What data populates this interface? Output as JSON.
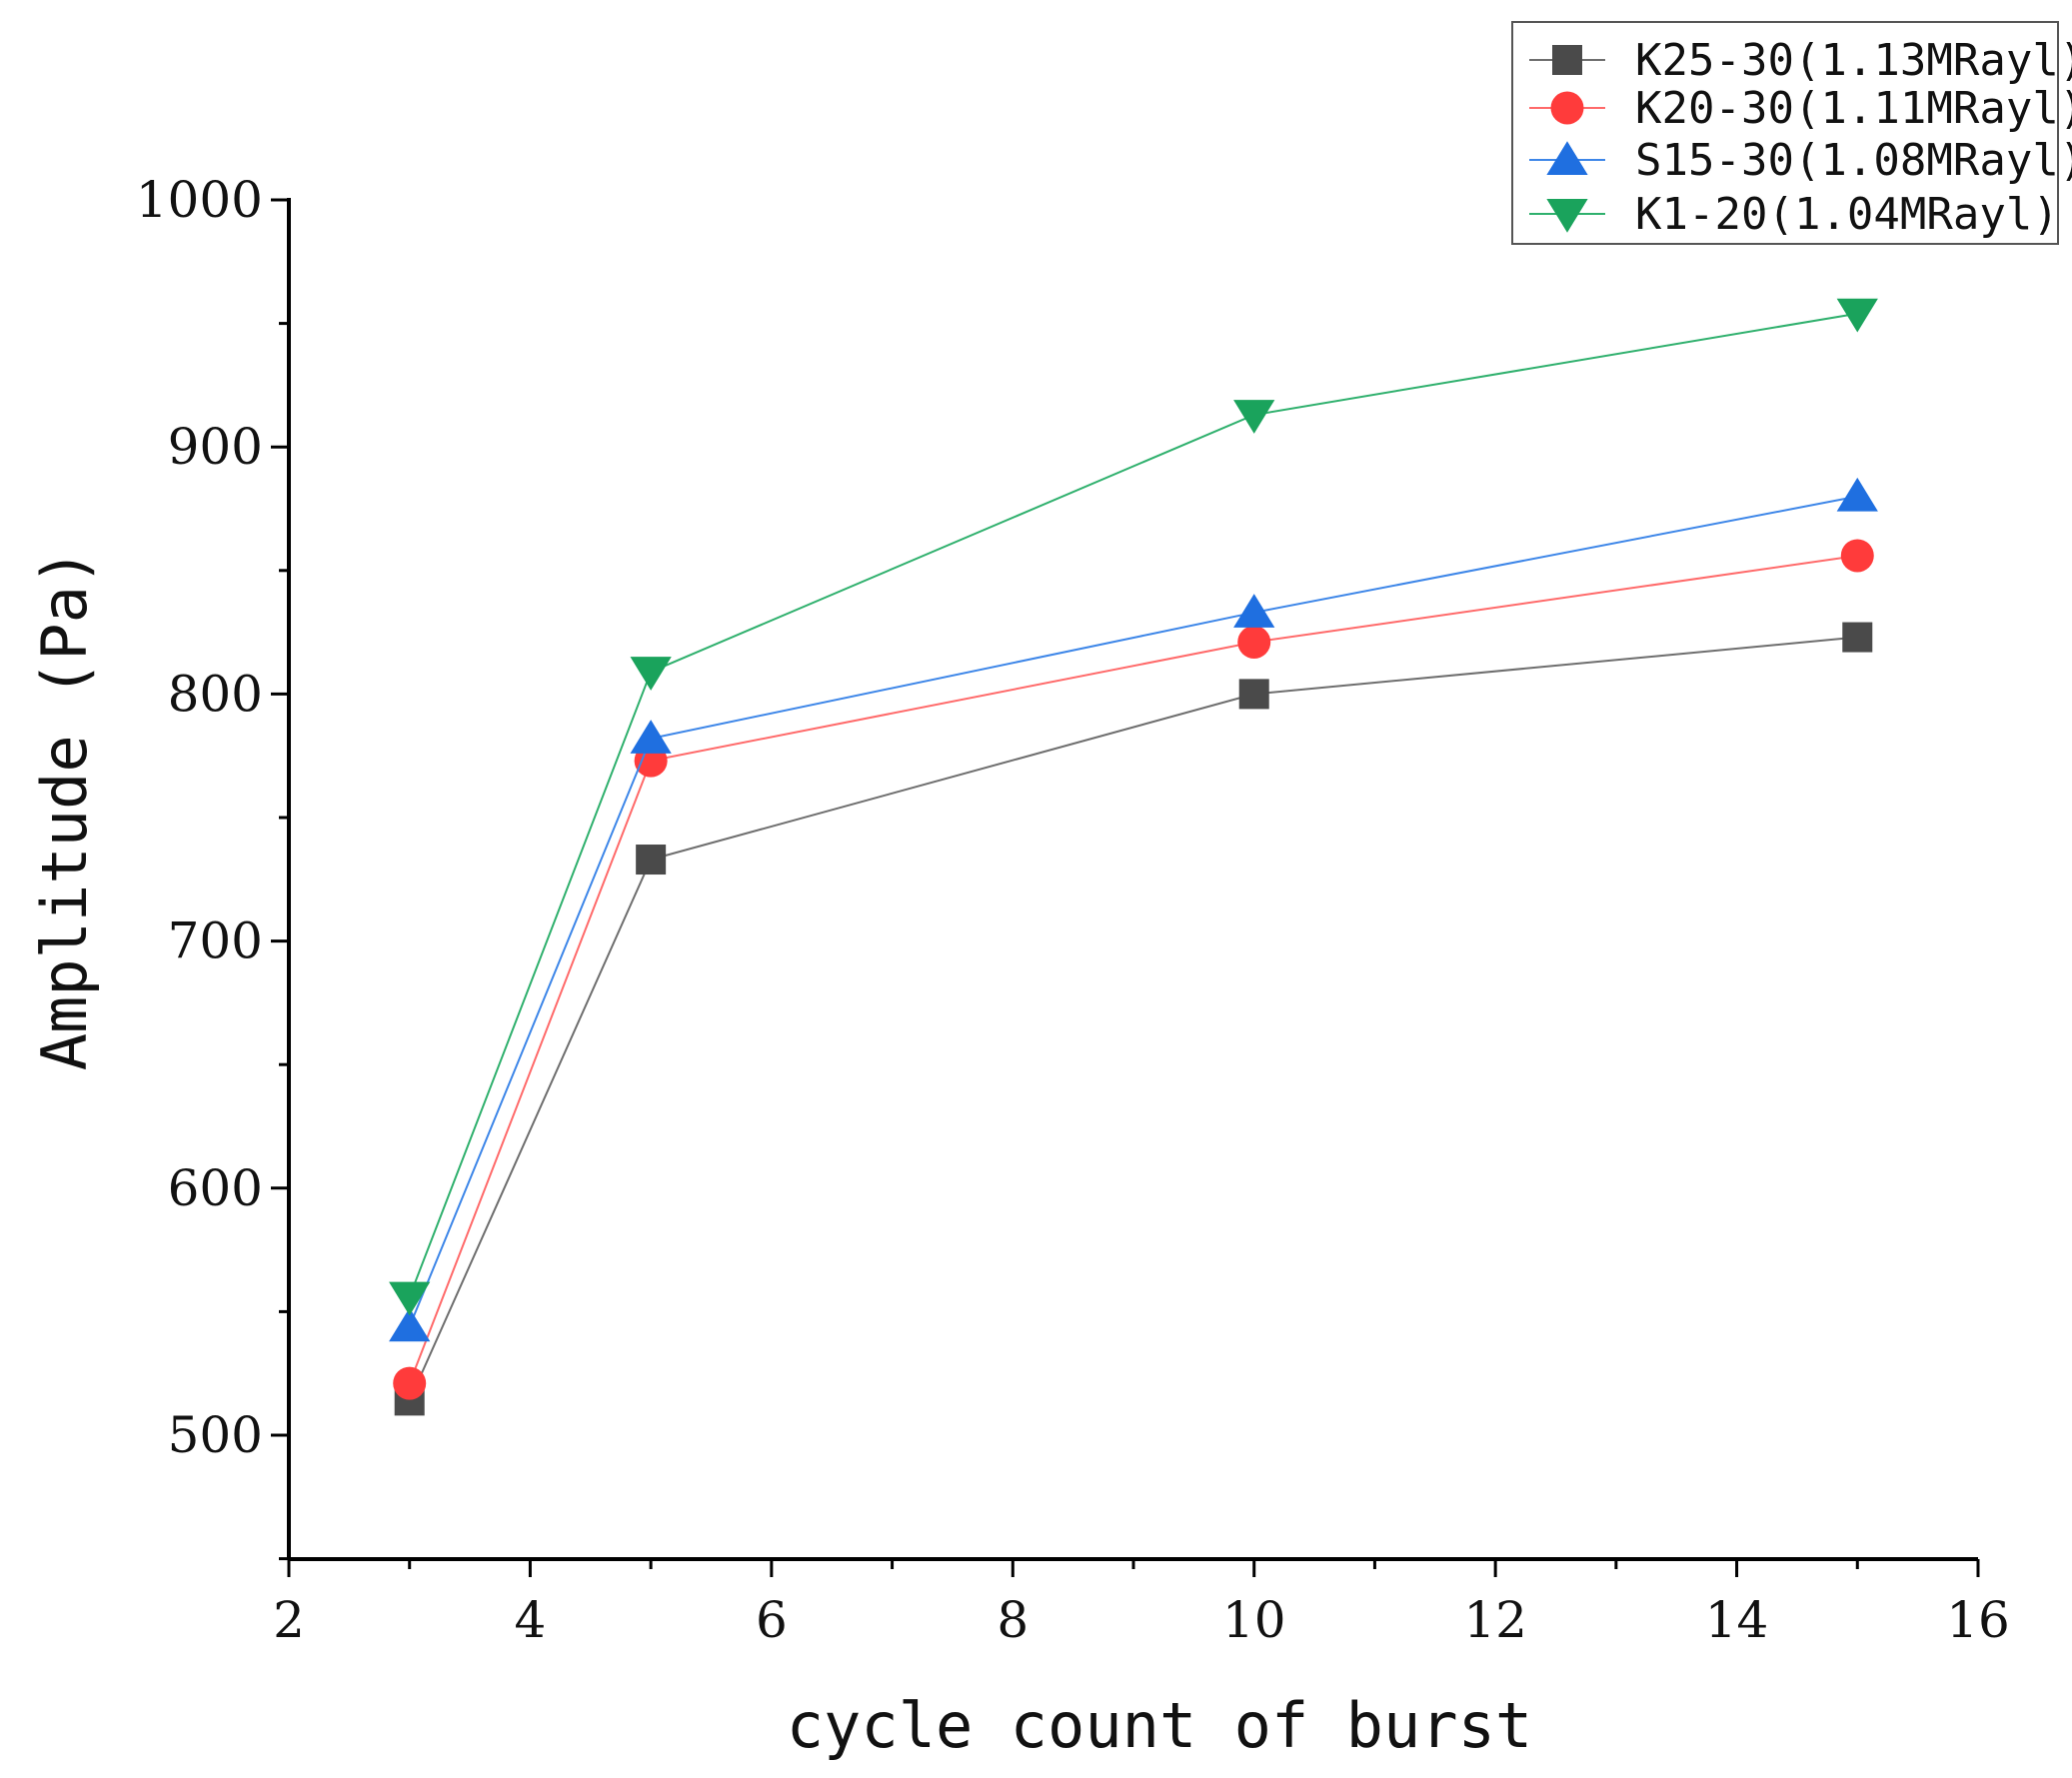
{
  "chart_data": {
    "type": "line",
    "title": "",
    "xlabel": "cycle count of burst",
    "ylabel": "Amplitude (Pa)",
    "xlim": [
      2,
      16
    ],
    "ylim": [
      450,
      1000
    ],
    "x_major_ticks": [
      2,
      4,
      6,
      8,
      10,
      12,
      14,
      16
    ],
    "x_tick_labels": [
      "2",
      "4",
      "6",
      "8",
      "10",
      "12",
      "14",
      "16"
    ],
    "y_major_ticks": [
      500,
      600,
      700,
      800,
      900,
      1000
    ],
    "y_tick_labels": [
      "500",
      "600",
      "700",
      "800",
      "900",
      "1000"
    ],
    "x": [
      3,
      5,
      10,
      15
    ],
    "legend_position": "top-right",
    "grid": false,
    "series": [
      {
        "name": "K25-30(1.13MRayl)",
        "marker": "square",
        "color": "#4a4a4a",
        "line_color": "#6e6e6e",
        "values": [
          514,
          733,
          800,
          823
        ]
      },
      {
        "name": "K20-30(1.11MRayl)",
        "marker": "circle",
        "color": "#ff3b3b",
        "line_color": "#ff6a6a",
        "values": [
          521,
          773,
          821,
          856
        ]
      },
      {
        "name": "S15-30(1.08MRayl)",
        "marker": "triangle-up",
        "color": "#1f6fe0",
        "line_color": "#3d86e8",
        "values": [
          544,
          782,
          833,
          880
        ]
      },
      {
        "name": "K1-20(1.04MRayl)",
        "marker": "triangle-down",
        "color": "#1aa35c",
        "line_color": "#2fb06d",
        "values": [
          556,
          809,
          913,
          954
        ]
      }
    ]
  }
}
